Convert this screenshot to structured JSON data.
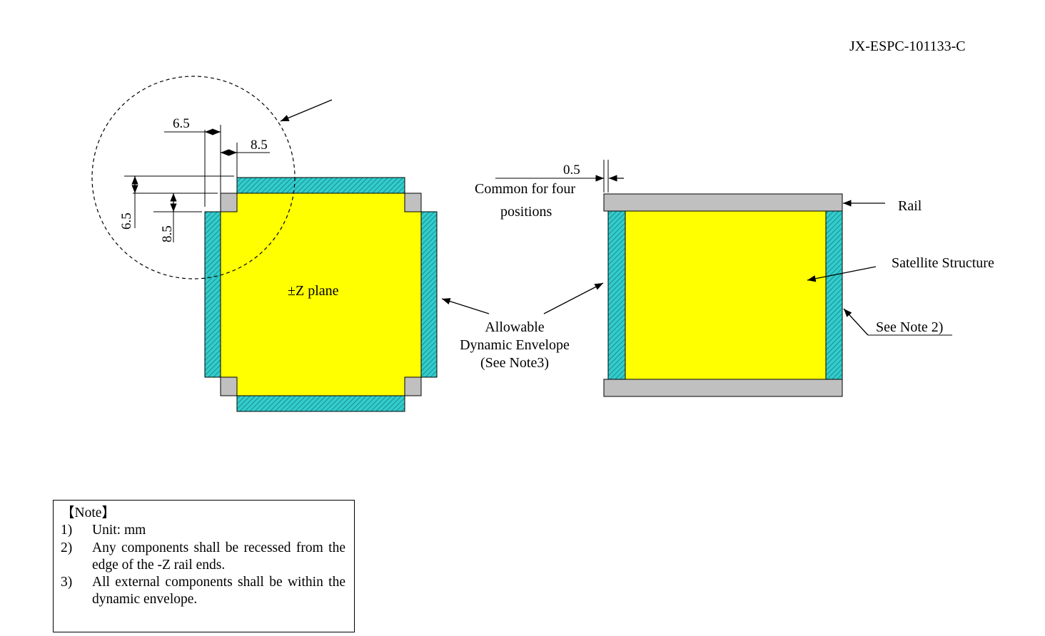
{
  "document": {
    "id": "JX-ESPC-101133-C"
  },
  "left_view": {
    "plane_label": "±Z plane",
    "dims": {
      "top_horizontal_1": "6.5",
      "top_horizontal_2": "8.5",
      "side_vertical_1": "6.5",
      "side_vertical_2": "8.5"
    }
  },
  "middle_labels": {
    "dim_common": "0.5",
    "common_line1": "Common for four",
    "common_line2": "positions",
    "envelope_line1": "Allowable",
    "envelope_line2": "Dynamic Envelope",
    "envelope_line3": "(See Note3)"
  },
  "right_view": {
    "rail_label": "Rail",
    "structure_label": "Satellite Structure",
    "note_ref": "See Note 2)"
  },
  "notes": {
    "heading": "【Note】",
    "items": [
      {
        "num": "1)",
        "text": "Unit: mm"
      },
      {
        "num": "2)",
        "text": "Any components shall be recessed from the edge of the -Z rail ends."
      },
      {
        "num": "3)",
        "text": "All external components shall be within the dynamic envelope."
      }
    ]
  },
  "colors": {
    "structure": "#ffff00",
    "envelope": "#33cccc",
    "rail": "#c0c0c0",
    "line": "#000000"
  }
}
